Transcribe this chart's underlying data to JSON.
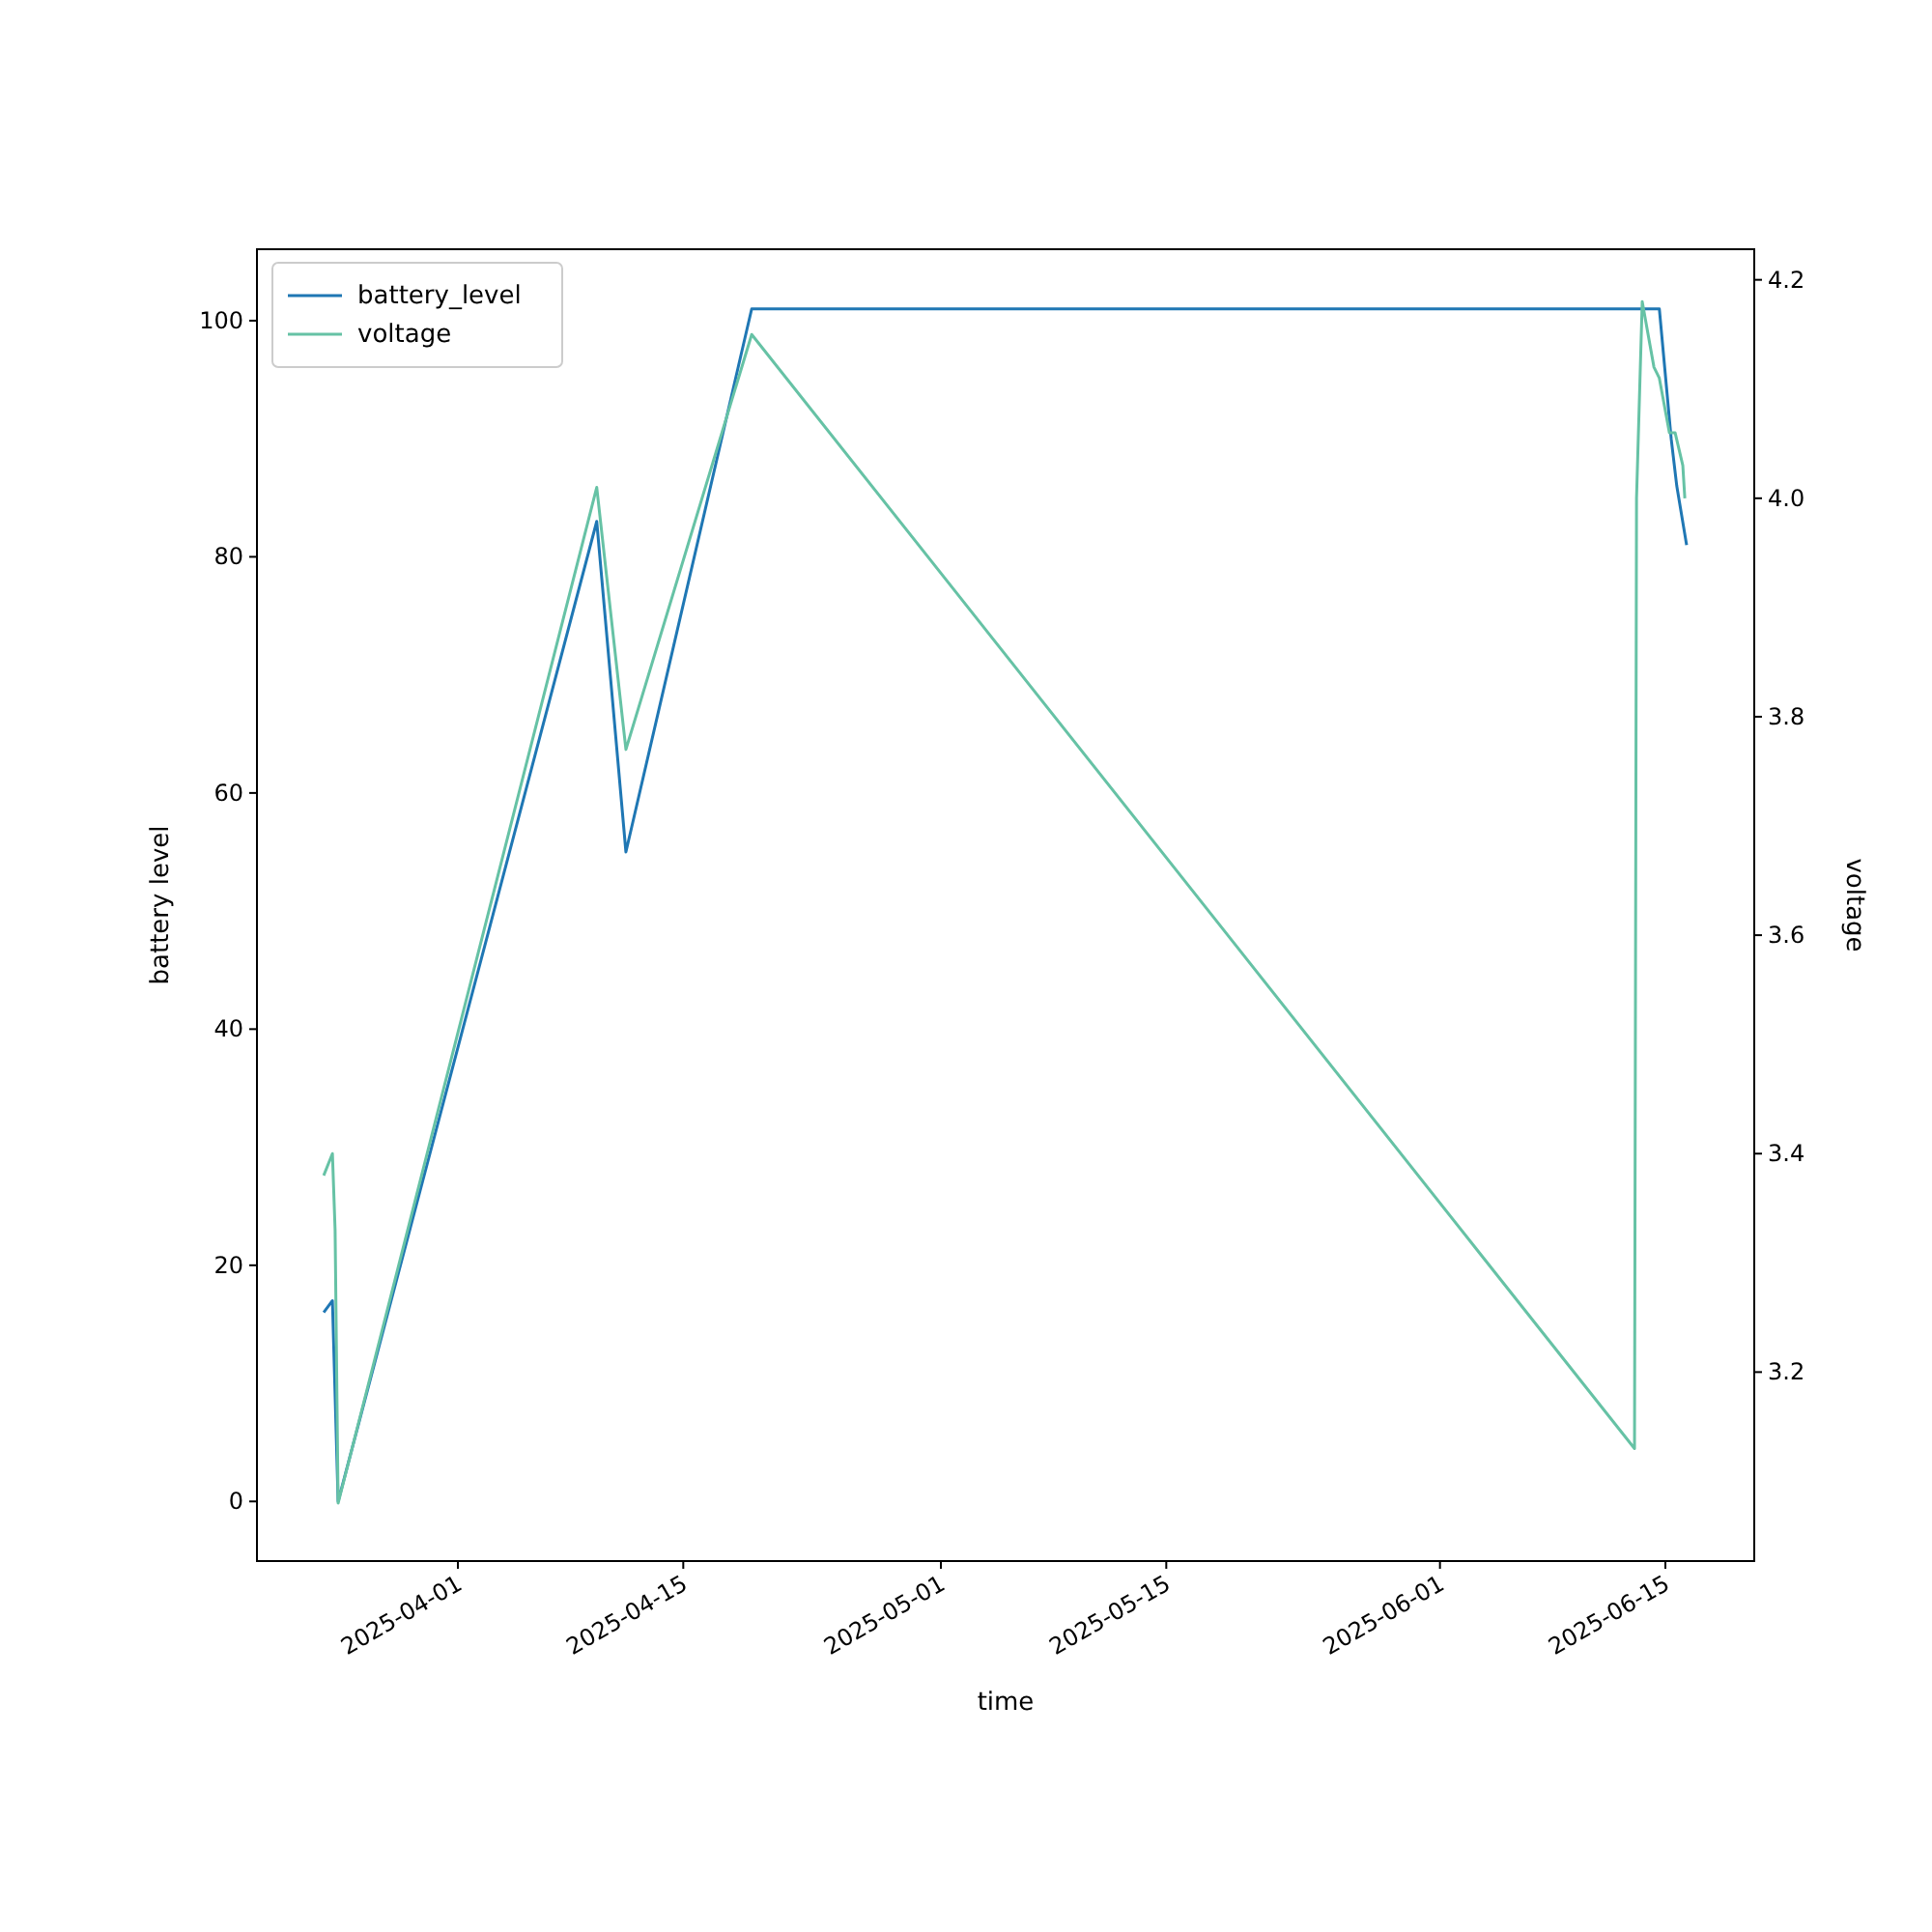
{
  "chart_data": {
    "type": "line",
    "xlabel": "time",
    "ylabel": "battery level",
    "y2label": "voltage",
    "xlim": [
      "2025-03-19T12:30",
      "2025-06-20T12:30"
    ],
    "xticks": [
      "2025-04-01",
      "2025-04-15",
      "2025-05-01",
      "2025-05-15",
      "2025-06-01",
      "2025-06-15"
    ],
    "ylim": [
      -5.05,
      106.05
    ],
    "yticks": [
      0,
      20,
      40,
      60,
      80,
      100
    ],
    "y2lim": [
      3.027,
      4.228
    ],
    "y2ticks": [
      3.2,
      3.4,
      3.6,
      3.8,
      {
        "value": 4,
        "label": "4.0"
      },
      4.2
    ],
    "legend": "top left",
    "grid": false,
    "series": [
      {
        "name": "battery_level",
        "color": "#1f77b4",
        "x": [
          "2025-03-23T16:00",
          "2025-03-24T05:00",
          "2025-03-24T13:30",
          "2025-04-09T15:00",
          "2025-04-11T10:30",
          "2025-04-19T06:00",
          "2025-06-14T15:00",
          "2025-06-15T08:40",
          "2025-06-15T17:00",
          "2025-06-16T07:40"
        ],
        "values": [
          16,
          17,
          0,
          83,
          55,
          101,
          101,
          90,
          86,
          81
        ]
      },
      {
        "name": "voltage",
        "color": "#66c2a5",
        "axis": "y2",
        "x": [
          "2025-03-23T16:00",
          "2025-03-24T05:00",
          "2025-03-24T09:00",
          "2025-03-24T13:30",
          "2025-04-09T15:00",
          "2025-04-11T10:30",
          "2025-04-19T06:00",
          "2025-06-13T02:00",
          "2025-06-13T05:00",
          "2025-06-13T13:30",
          "2025-06-14T07:00",
          "2025-06-14T15:00",
          "2025-06-15T06:00",
          "2025-06-15T14:30",
          "2025-06-16T02:00",
          "2025-06-16T05:00"
        ],
        "values": [
          3.38,
          3.4,
          3.33,
          3.08,
          4.01,
          3.77,
          4.15,
          3.13,
          4.0,
          4.18,
          4.12,
          4.11,
          4.06,
          4.06,
          4.03,
          4.0
        ]
      }
    ]
  }
}
